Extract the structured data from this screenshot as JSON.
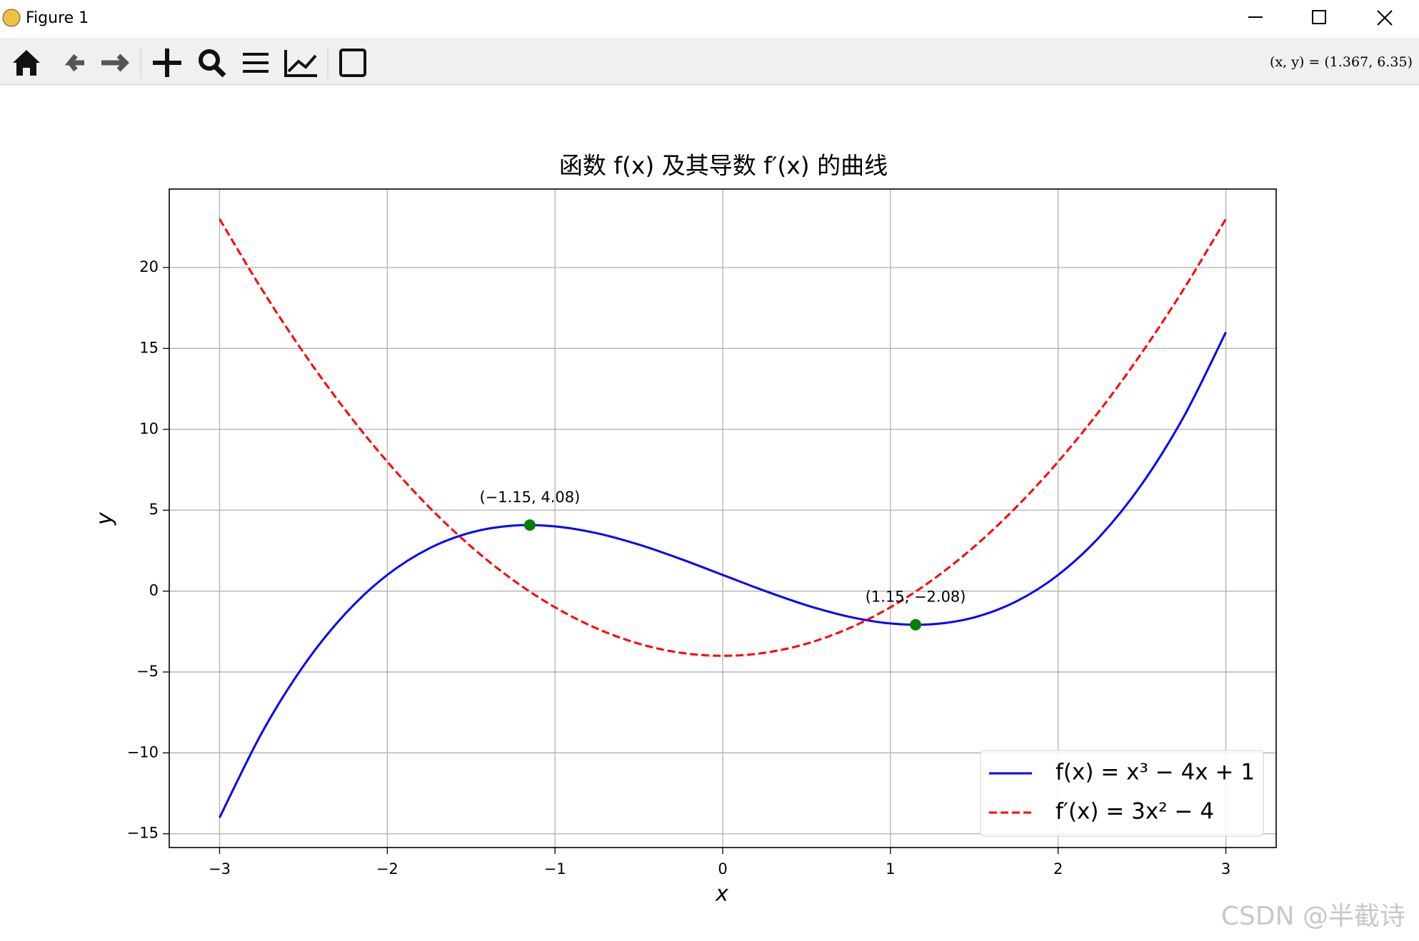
{
  "window": {
    "title": "Figure 1",
    "coordinates": "(x, y) = (1.367, 6.35)",
    "watermark": "CSDN @半截诗"
  },
  "chart_data": {
    "type": "line",
    "title": "函数  f(x)  及其导数  f′(x)  的曲线",
    "x_label": "x",
    "y_label": "y",
    "x": [
      -3,
      -2.75,
      -2.5,
      -2.25,
      -2,
      -1.75,
      -1.5,
      -1.25,
      -1,
      -0.75,
      -0.5,
      -0.25,
      0,
      0.25,
      0.5,
      0.75,
      1,
      1.25,
      1.5,
      1.75,
      2,
      2.25,
      2.5,
      2.75,
      3
    ],
    "series": [
      {
        "name": "f(x) = x³ − 4x + 1",
        "color": "#0000ff",
        "dash": "solid",
        "values": [
          -14,
          -8.797,
          -4.625,
          -1.391,
          1,
          2.641,
          3.625,
          4.047,
          4,
          3.578,
          2.875,
          1.984,
          1,
          0.016,
          -0.875,
          -1.578,
          -2,
          -2.047,
          -1.625,
          -0.641,
          1,
          3.391,
          6.625,
          10.797,
          16
        ]
      },
      {
        "name": "f′(x) = 3x² − 4",
        "color": "#ff0000",
        "dash": "dashed",
        "values": [
          23,
          18.6875,
          14.75,
          11.1875,
          8,
          5.1875,
          2.75,
          0.6875,
          -1,
          -2.3125,
          -3.25,
          -3.8125,
          -4,
          -3.8125,
          -3.25,
          -2.3125,
          -1,
          0.6875,
          2.75,
          5.1875,
          8,
          11.1875,
          14.75,
          18.6875,
          23
        ]
      }
    ],
    "points": {
      "color": "#008000",
      "x": [
        -1.15,
        1.15
      ],
      "values": [
        4.08,
        -2.08
      ],
      "value_labels": [
        "(−1.15, 4.08)",
        "(1.15, −2.08)"
      ]
    },
    "xlim": [
      -3.3,
      3.3
    ],
    "ylim": [
      -15.85,
      24.85
    ],
    "xticks": [
      {
        "value": -3,
        "label": "−3"
      },
      {
        "value": -2,
        "label": "−2"
      },
      {
        "value": -1,
        "label": "−1"
      },
      0,
      1,
      2,
      3
    ],
    "yticks": [
      {
        "value": -15,
        "label": "−15"
      },
      {
        "value": -10,
        "label": "−10"
      },
      {
        "value": -5,
        "label": "−5"
      },
      0,
      5,
      10,
      15,
      20
    ],
    "grid": true,
    "legend": "lower right"
  }
}
